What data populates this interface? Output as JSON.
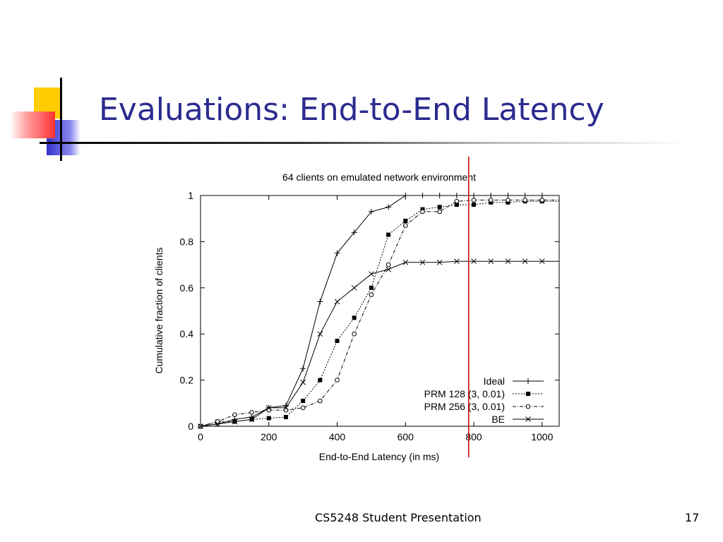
{
  "slide": {
    "title": "Evaluations: End-to-End Latency",
    "footer_text": "CS5248 Student Presentation",
    "page_number": "17",
    "colors": {
      "title": "#2b2b8f",
      "deco_yellow": "#ffcc00",
      "deco_blue": "#3333cc",
      "deco_red": "#ff3333",
      "marker_line": "#cc0000"
    }
  },
  "chart_data": {
    "type": "line",
    "title": "64 clients on emulated network environment",
    "xlabel": "End-to-End Latency (in ms)",
    "ylabel": "Cumulative fraction of clients",
    "xlim": [
      0,
      1050
    ],
    "ylim": [
      0,
      1
    ],
    "xticks": [
      0,
      200,
      400,
      600,
      800,
      1000
    ],
    "yticks": [
      0,
      0.2,
      0.4,
      0.6,
      0.8,
      1
    ],
    "grid": false,
    "legend_position": "bottom-right",
    "vertical_marker_x": 785,
    "series": [
      {
        "name": "Ideal",
        "marker": "plus",
        "dash": "solid",
        "x": [
          0,
          50,
          100,
          150,
          200,
          250,
          300,
          350,
          400,
          450,
          500,
          550,
          600,
          650,
          700,
          750,
          800,
          850,
          900,
          950,
          1000,
          1050
        ],
        "y": [
          0,
          0.01,
          0.03,
          0.04,
          0.08,
          0.09,
          0.25,
          0.54,
          0.75,
          0.84,
          0.93,
          0.95,
          1.0,
          1.0,
          1.0,
          1.0,
          1.0,
          1.0,
          1.0,
          1.0,
          1.0,
          1.0
        ]
      },
      {
        "name": "PRM 128 (3, 0.01)",
        "marker": "square",
        "dash": "dotted",
        "x": [
          0,
          50,
          100,
          150,
          200,
          250,
          300,
          350,
          400,
          450,
          500,
          550,
          600,
          650,
          700,
          750,
          800,
          850,
          900,
          950,
          1000,
          1050
        ],
        "y": [
          0,
          0.02,
          0.02,
          0.03,
          0.035,
          0.04,
          0.11,
          0.2,
          0.37,
          0.47,
          0.6,
          0.83,
          0.89,
          0.94,
          0.95,
          0.96,
          0.96,
          0.97,
          0.97,
          0.975,
          0.975,
          0.975
        ]
      },
      {
        "name": "PRM 256 (3, 0.01)",
        "marker": "circle",
        "dash": "dashdot",
        "x": [
          0,
          50,
          100,
          150,
          200,
          250,
          300,
          350,
          400,
          450,
          500,
          550,
          600,
          650,
          700,
          750,
          800,
          850,
          900,
          950,
          1000,
          1050
        ],
        "y": [
          0,
          0.02,
          0.05,
          0.06,
          0.07,
          0.07,
          0.08,
          0.11,
          0.2,
          0.4,
          0.57,
          0.7,
          0.87,
          0.93,
          0.93,
          0.975,
          0.98,
          0.98,
          0.98,
          0.98,
          0.98,
          0.98
        ]
      },
      {
        "name": "BE",
        "marker": "cross",
        "dash": "solid",
        "x": [
          0,
          50,
          100,
          150,
          200,
          250,
          300,
          350,
          400,
          450,
          500,
          550,
          600,
          650,
          700,
          750,
          800,
          850,
          900,
          950,
          1000,
          1050
        ],
        "y": [
          0,
          0.01,
          0.02,
          0.03,
          0.08,
          0.08,
          0.19,
          0.4,
          0.54,
          0.6,
          0.66,
          0.68,
          0.71,
          0.71,
          0.71,
          0.715,
          0.715,
          0.715,
          0.715,
          0.715,
          0.715,
          0.715
        ]
      }
    ]
  }
}
